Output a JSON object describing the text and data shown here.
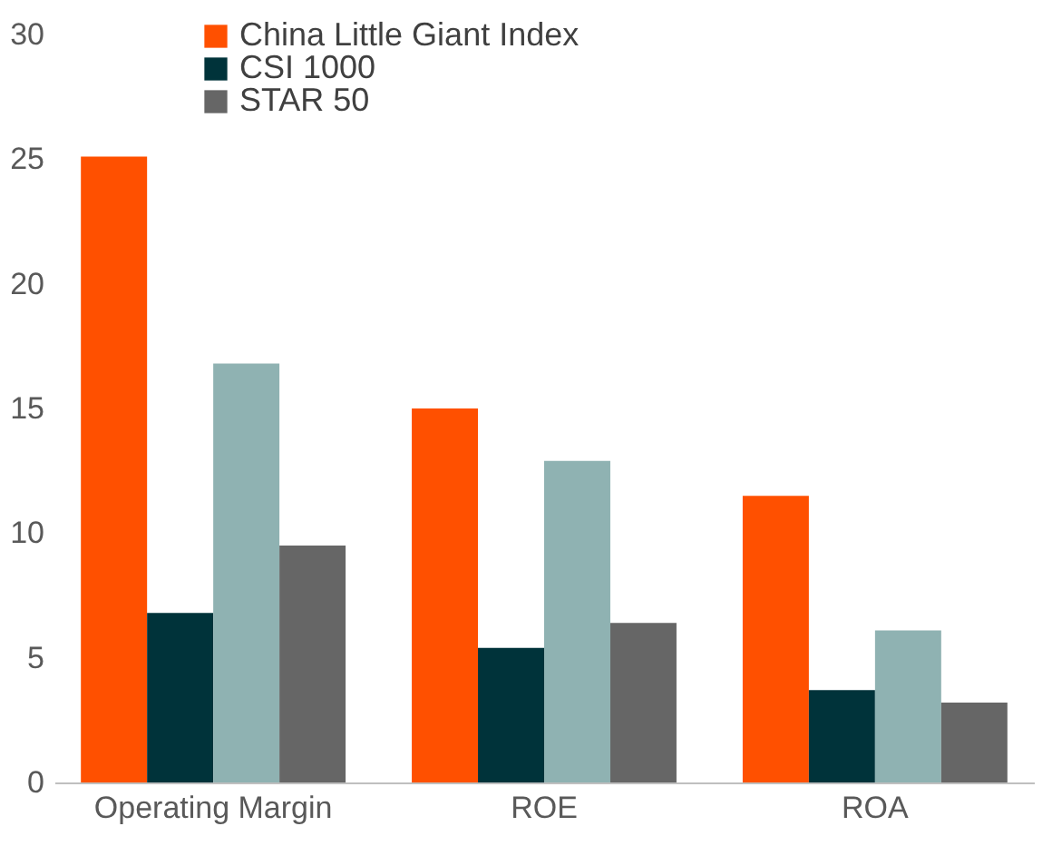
{
  "chart_data": {
    "type": "bar",
    "categories": [
      "Operating Margin",
      "ROE",
      "ROA"
    ],
    "series": [
      {
        "name": "China Little Giant Index",
        "color": "#ff5000",
        "values": [
          25.1,
          15.0,
          11.5
        ]
      },
      {
        "name": "CSI 1000",
        "color": "#00333a",
        "values": [
          6.8,
          5.4,
          3.7
        ]
      },
      {
        "color": "#8fb2b2",
        "values": [
          16.8,
          12.9,
          6.1
        ]
      },
      {
        "name": "STAR 50",
        "color": "#666666",
        "values": [
          9.5,
          6.4,
          3.2
        ]
      }
    ],
    "ylim": [
      0,
      30
    ],
    "yticks": [
      0,
      5,
      10,
      15,
      20,
      25,
      30
    ],
    "grid": false,
    "legend": "top left"
  }
}
